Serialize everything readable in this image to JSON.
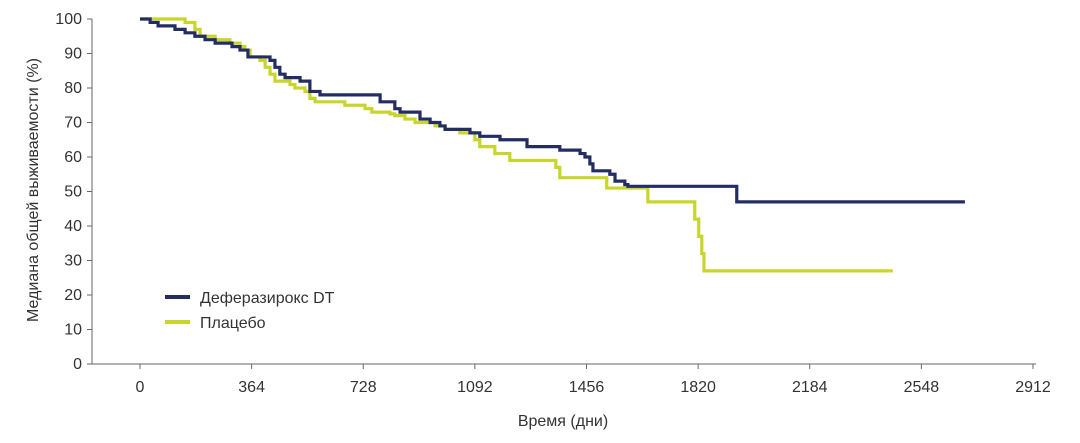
{
  "chart_data": {
    "type": "line",
    "step": true,
    "xlabel": "Время (дни)",
    "ylabel": "Медиана общей выживаемости (%)",
    "xlim": [
      0,
      2912
    ],
    "ylim": [
      0,
      100
    ],
    "xticks": [
      0,
      364,
      728,
      1092,
      1456,
      1820,
      2184,
      2548,
      2912
    ],
    "yticks": [
      0,
      10,
      20,
      30,
      40,
      50,
      60,
      70,
      80,
      90,
      100
    ],
    "grid": false,
    "legend_position": "bottom-left",
    "series": [
      {
        "name": "Деферазирокс DT",
        "color": "#232d63",
        "x": [
          0,
          33,
          59,
          114,
          147,
          179,
          212,
          245,
          300,
          326,
          352,
          424,
          440,
          456,
          473,
          522,
          554,
          587,
          783,
          831,
          848,
          913,
          946,
          978,
          995,
          1076,
          1108,
          1174,
          1262,
          1369,
          1435,
          1451,
          1467,
          1477,
          1532,
          1549,
          1581,
          1591,
          1946,
          2690
        ],
        "y": [
          100,
          99,
          98,
          97,
          96,
          95,
          94,
          93,
          92,
          91,
          89,
          88,
          86,
          84,
          83,
          82,
          79,
          78,
          76,
          74,
          73,
          71,
          70,
          69,
          68,
          67,
          66,
          65,
          63,
          62,
          61,
          60,
          58,
          56,
          55,
          53,
          52,
          51.5,
          47,
          47
        ]
      },
      {
        "name": "Плацебо",
        "color": "#c8d62b",
        "x": [
          0,
          137,
          147,
          179,
          196,
          245,
          293,
          326,
          342,
          359,
          391,
          408,
          424,
          440,
          489,
          505,
          538,
          554,
          571,
          668,
          734,
          756,
          815,
          831,
          864,
          897,
          962,
          994,
          1043,
          1092,
          1108,
          1157,
          1206,
          1356,
          1369,
          1522,
          1656,
          1809,
          1822,
          1832,
          1839,
          2455
        ],
        "y": [
          100,
          100,
          99,
          97,
          95,
          94,
          93,
          92,
          91,
          89,
          88,
          86,
          84,
          82,
          81,
          80,
          79,
          77,
          76,
          75,
          74,
          73,
          72.5,
          72,
          71,
          70,
          69,
          68,
          67,
          65,
          63,
          61,
          59,
          57,
          54,
          51,
          47,
          42,
          37,
          32,
          27,
          27
        ]
      }
    ]
  }
}
